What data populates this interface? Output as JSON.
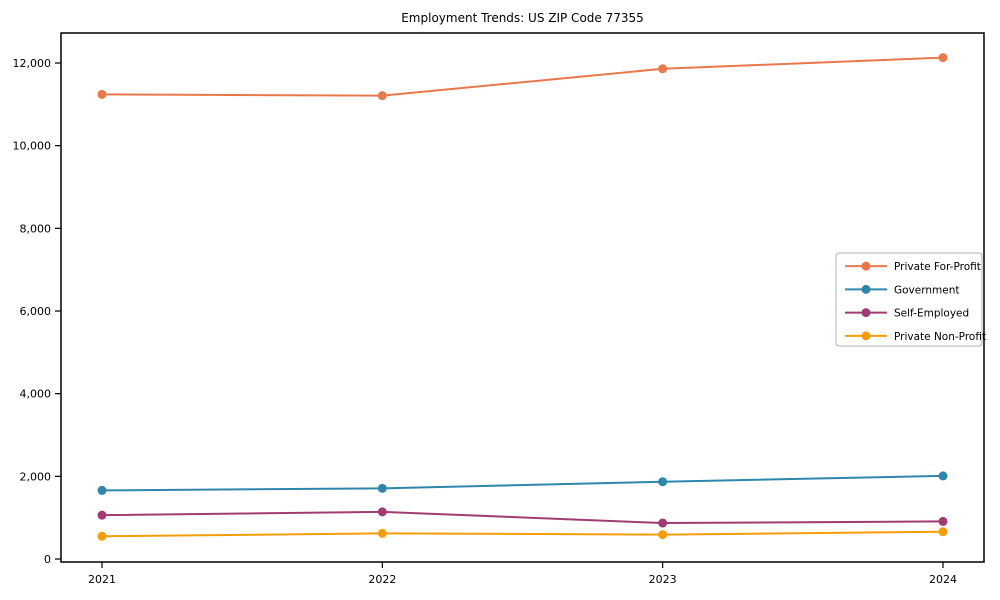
{
  "chart_data": {
    "type": "line",
    "title": "Employment Trends: US ZIP Code 77355",
    "xlabel": "",
    "ylabel": "",
    "categories": [
      "2021",
      "2022",
      "2023",
      "2024"
    ],
    "series": [
      {
        "name": "Private For-Profit",
        "color": "#E8794A",
        "values": [
          11240,
          11210,
          11860,
          12130
        ]
      },
      {
        "name": "Government",
        "color": "#2E86AB",
        "values": [
          1660,
          1710,
          1870,
          2010
        ]
      },
      {
        "name": "Self-Employed",
        "color": "#A23B72",
        "values": [
          1060,
          1140,
          870,
          910
        ]
      },
      {
        "name": "Private Non-Profit",
        "color": "#F49D0B",
        "values": [
          550,
          620,
          590,
          660
        ]
      }
    ],
    "yticks": [
      0,
      2000,
      4000,
      6000,
      8000,
      10000,
      12000
    ],
    "ytick_labels": [
      "0",
      "2,000",
      "4,000",
      "6,000",
      "8,000",
      "10,000",
      "12,000"
    ],
    "ylim": [
      0,
      12700
    ],
    "grid": false,
    "marker": "circle",
    "legend_position": "center-right",
    "colors": {
      "spine": "#000000",
      "background": "#ffffff",
      "legend_border": "#b3b3b3"
    }
  }
}
